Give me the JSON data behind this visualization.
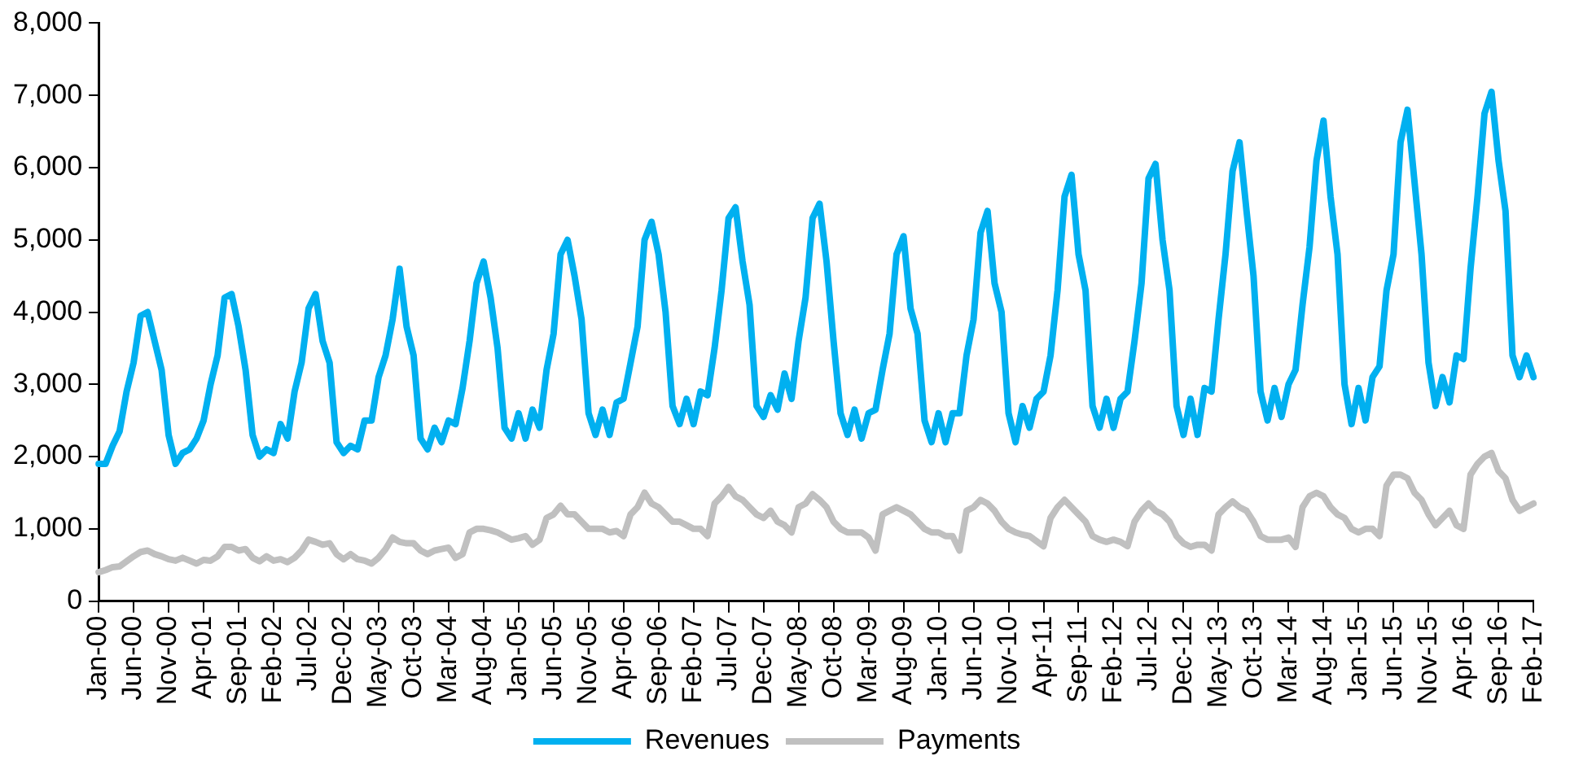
{
  "chart_data": {
    "type": "line",
    "legend": "bottom",
    "grid": false,
    "marker": "none",
    "line_style": "solid",
    "categories": [
      "Jan-00",
      null,
      null,
      null,
      null,
      "Jun-00",
      null,
      null,
      null,
      null,
      "Nov-00",
      null,
      null,
      null,
      null,
      "Apr-01",
      null,
      null,
      null,
      null,
      "Sep-01",
      null,
      null,
      null,
      null,
      "Feb-02",
      null,
      null,
      null,
      null,
      "Jul-02",
      null,
      null,
      null,
      null,
      "Dec-02",
      null,
      null,
      null,
      null,
      "May-03",
      null,
      null,
      null,
      null,
      "Oct-03",
      null,
      null,
      null,
      null,
      "Mar-04",
      null,
      null,
      null,
      null,
      "Aug-04",
      null,
      null,
      null,
      null,
      "Jan-05",
      null,
      null,
      null,
      null,
      "Jun-05",
      null,
      null,
      null,
      null,
      "Nov-05",
      null,
      null,
      null,
      null,
      "Apr-06",
      null,
      null,
      null,
      null,
      "Sep-06",
      null,
      null,
      null,
      null,
      "Feb-07",
      null,
      null,
      null,
      null,
      "Jul-07",
      null,
      null,
      null,
      null,
      "Dec-07",
      null,
      null,
      null,
      null,
      "May-08",
      null,
      null,
      null,
      null,
      "Oct-08",
      null,
      null,
      null,
      null,
      "Mar-09",
      null,
      null,
      null,
      null,
      "Aug-09",
      null,
      null,
      null,
      null,
      "Jan-10",
      null,
      null,
      null,
      null,
      "Jun-10",
      null,
      null,
      null,
      null,
      "Nov-10",
      null,
      null,
      null,
      null,
      "Apr-11",
      null,
      null,
      null,
      null,
      "Sep-11",
      null,
      null,
      null,
      null,
      "Feb-12",
      null,
      null,
      null,
      null,
      "Jul-12",
      null,
      null,
      null,
      null,
      "Dec-12",
      null,
      null,
      null,
      null,
      "May-13",
      null,
      null,
      null,
      null,
      "Oct-13",
      null,
      null,
      null,
      null,
      "Mar-14",
      null,
      null,
      null,
      null,
      "Aug-14",
      null,
      null,
      null,
      null,
      "Jan-15",
      null,
      null,
      null,
      null,
      "Jun-15",
      null,
      null,
      null,
      null,
      "Nov-15",
      null,
      null,
      null,
      null,
      "Apr-16",
      null,
      null,
      null,
      null,
      "Sep-16",
      null,
      null,
      null,
      null,
      "Feb-17"
    ],
    "ylim": [
      0,
      8000
    ],
    "yticks": [
      {
        "value": 0,
        "label": "0"
      },
      {
        "value": 1000,
        "label": "1,000"
      },
      {
        "value": 2000,
        "label": "2,000"
      },
      {
        "value": 3000,
        "label": "3,000"
      },
      {
        "value": 4000,
        "label": "4,000"
      },
      {
        "value": 5000,
        "label": "5,000"
      },
      {
        "value": 6000,
        "label": "6,000"
      },
      {
        "value": 7000,
        "label": "7,000"
      },
      {
        "value": 8000,
        "label": "8,000"
      }
    ],
    "series": [
      {
        "name": "Revenues",
        "color": "#00b0f0",
        "values": [
          1900,
          1900,
          2150,
          2350,
          2900,
          3300,
          3950,
          4000,
          3600,
          3200,
          2300,
          1900,
          2050,
          2100,
          2250,
          2500,
          3000,
          3400,
          4200,
          4250,
          3800,
          3200,
          2300,
          2000,
          2100,
          2050,
          2450,
          2250,
          2900,
          3300,
          4050,
          4250,
          3600,
          3300,
          2200,
          2050,
          2150,
          2100,
          2500,
          2500,
          3100,
          3400,
          3900,
          4600,
          3800,
          3400,
          2250,
          2100,
          2400,
          2200,
          2500,
          2450,
          2950,
          3600,
          4400,
          4700,
          4200,
          3500,
          2400,
          2250,
          2600,
          2250,
          2650,
          2400,
          3200,
          3700,
          4800,
          5000,
          4500,
          3900,
          2600,
          2300,
          2650,
          2300,
          2750,
          2800,
          3300,
          3800,
          5000,
          5250,
          4800,
          4000,
          2700,
          2450,
          2800,
          2450,
          2900,
          2850,
          3500,
          4300,
          5300,
          5450,
          4700,
          4100,
          2700,
          2550,
          2850,
          2650,
          3150,
          2800,
          3600,
          4200,
          5300,
          5500,
          4700,
          3600,
          2600,
          2300,
          2650,
          2250,
          2600,
          2650,
          3200,
          3700,
          4800,
          5050,
          4050,
          3700,
          2500,
          2200,
          2600,
          2200,
          2600,
          2600,
          3400,
          3900,
          5100,
          5400,
          4400,
          4000,
          2600,
          2200,
          2700,
          2400,
          2800,
          2900,
          3400,
          4300,
          5600,
          5900,
          4800,
          4300,
          2700,
          2400,
          2800,
          2400,
          2800,
          2900,
          3600,
          4400,
          5850,
          6050,
          5000,
          4300,
          2700,
          2300,
          2800,
          2300,
          2950,
          2900,
          3900,
          4800,
          5950,
          6350,
          5400,
          4500,
          2900,
          2500,
          2950,
          2550,
          3000,
          3200,
          4100,
          4900,
          6100,
          6650,
          5600,
          4800,
          3000,
          2450,
          2950,
          2500,
          3100,
          3250,
          4300,
          4800,
          6350,
          6800,
          5800,
          4800,
          3300,
          2700,
          3100,
          2750,
          3400,
          3350,
          4600,
          5600,
          6750,
          7050,
          6100,
          5400,
          3400,
          3100,
          3400,
          3100
        ]
      },
      {
        "name": "Payments",
        "color": "#c0c0c0",
        "values": [
          400,
          430,
          470,
          480,
          550,
          620,
          680,
          700,
          650,
          620,
          580,
          560,
          600,
          560,
          520,
          570,
          560,
          620,
          750,
          750,
          700,
          720,
          600,
          550,
          620,
          560,
          580,
          540,
          600,
          700,
          850,
          820,
          780,
          800,
          650,
          580,
          650,
          580,
          560,
          520,
          600,
          720,
          880,
          820,
          800,
          800,
          700,
          650,
          700,
          720,
          740,
          600,
          650,
          950,
          1000,
          1000,
          980,
          950,
          900,
          850,
          870,
          900,
          780,
          850,
          1150,
          1200,
          1320,
          1200,
          1200,
          1100,
          1000,
          1000,
          1000,
          950,
          970,
          900,
          1200,
          1300,
          1500,
          1350,
          1300,
          1200,
          1100,
          1100,
          1050,
          1000,
          1000,
          900,
          1350,
          1450,
          1580,
          1450,
          1400,
          1300,
          1200,
          1150,
          1250,
          1100,
          1050,
          950,
          1300,
          1350,
          1480,
          1400,
          1300,
          1100,
          1000,
          950,
          950,
          950,
          880,
          700,
          1200,
          1250,
          1300,
          1250,
          1200,
          1100,
          1000,
          950,
          950,
          900,
          900,
          700,
          1250,
          1300,
          1400,
          1350,
          1250,
          1100,
          1000,
          950,
          920,
          900,
          830,
          760,
          1150,
          1300,
          1400,
          1300,
          1200,
          1100,
          900,
          850,
          820,
          850,
          820,
          760,
          1100,
          1250,
          1350,
          1250,
          1200,
          1100,
          900,
          800,
          750,
          780,
          780,
          700,
          1200,
          1300,
          1380,
          1300,
          1250,
          1100,
          900,
          850,
          850,
          850,
          880,
          750,
          1300,
          1450,
          1500,
          1450,
          1300,
          1200,
          1150,
          1000,
          950,
          1000,
          1000,
          900,
          1600,
          1750,
          1750,
          1700,
          1500,
          1400,
          1200,
          1050,
          1150,
          1250,
          1050,
          1000,
          1750,
          1900,
          2000,
          2050,
          1800,
          1700,
          1400,
          1250,
          1300,
          1350
        ]
      }
    ]
  }
}
